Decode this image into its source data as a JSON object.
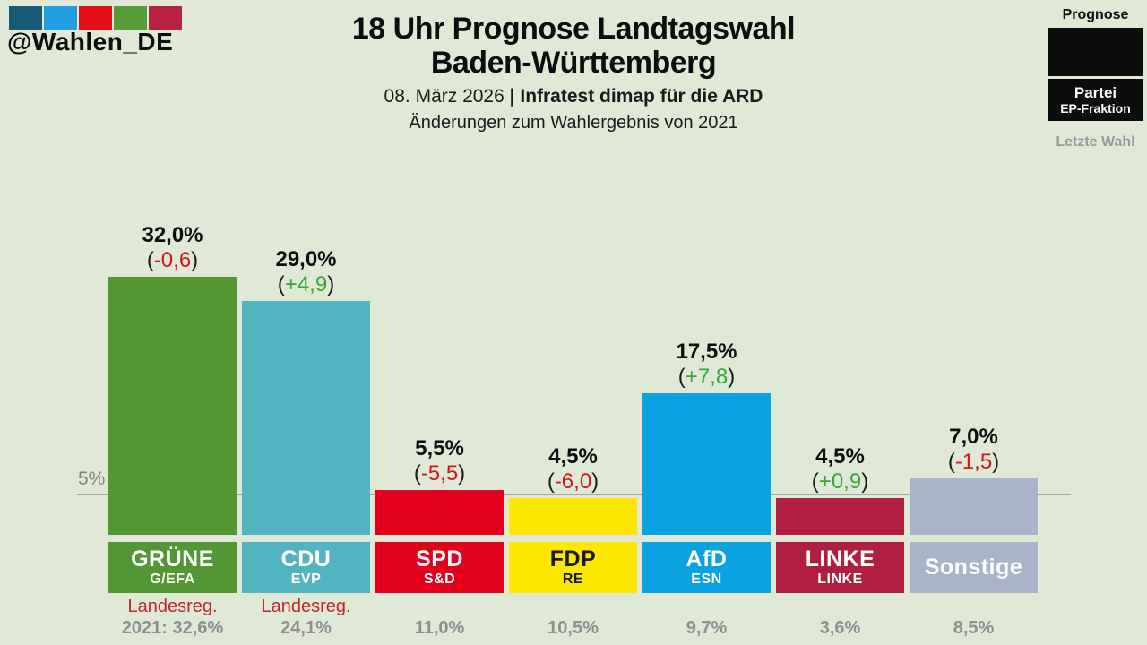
{
  "background_color": "#dfe9d6",
  "brand": {
    "handle": "@Wahlen_DE",
    "logo_square_colors": [
      "#175a74",
      "#219fe0",
      "#e30e18",
      "#579b3b",
      "#b82140"
    ]
  },
  "header": {
    "title_line1": "18 Uhr Prognose Landtagswahl",
    "title_line2": "Baden-Württemberg",
    "subtitle_date": "08. März 2026 ",
    "subtitle_separator": "| ",
    "subtitle_source": "Infratest dimap für die ARD",
    "change_note": "Änderungen zum Wahlergebnis von 2021"
  },
  "legend": {
    "prognose_label": "Prognose",
    "party_label": "Partei",
    "faction_label": "EP-Fraktion",
    "last_election_label": "Letzte Wahl"
  },
  "axis": {
    "threshold_label": "5%",
    "threshold_value": 5
  },
  "chart_data": {
    "type": "bar",
    "title": "18 Uhr Prognose Landtagswahl Baden-Württemberg",
    "subtitle": "08. März 2026 | Infratest dimap für die ARD",
    "categories": [
      "GRÜNE",
      "CDU",
      "SPD",
      "FDP",
      "AfD",
      "LINKE",
      "Sonstige"
    ],
    "values": [
      32.0,
      29.0,
      5.5,
      4.5,
      17.5,
      4.5,
      7.0
    ],
    "ylim": [
      0,
      35
    ],
    "threshold": 5,
    "grid": false,
    "change_positive_color": "#35a838",
    "change_negative_color": "#d01717",
    "bars": [
      {
        "party": "GRÜNE",
        "faction": "G/EFA",
        "value": 32.0,
        "value_label": "32,0%",
        "change": -0.6,
        "change_label": "-0,6",
        "color": "#539735",
        "label_text_color": "#ffffff",
        "gov_note": "Landesreg.",
        "last_result": "2021: 32,6%"
      },
      {
        "party": "CDU",
        "faction": "EVP",
        "value": 29.0,
        "value_label": "29,0%",
        "change": 4.9,
        "change_label": "+4,9",
        "color": "#52b4c0",
        "label_text_color": "#ffffff",
        "gov_note": "Landesreg.",
        "last_result": "24,1%"
      },
      {
        "party": "SPD",
        "faction": "S&D",
        "value": 5.5,
        "value_label": "5,5%",
        "change": -5.5,
        "change_label": "-5,5",
        "color": "#e3001c",
        "label_text_color": "#ffffff",
        "gov_note": "",
        "last_result": "11,0%"
      },
      {
        "party": "FDP",
        "faction": "RE",
        "value": 4.5,
        "value_label": "4,5%",
        "change": -6.0,
        "change_label": "-6,0",
        "color": "#ffe800",
        "label_text_color": "#1a1a1a",
        "gov_note": "",
        "last_result": "10,5%"
      },
      {
        "party": "AfD",
        "faction": "ESN",
        "value": 17.5,
        "value_label": "17,5%",
        "change": 7.8,
        "change_label": "+7,8",
        "color": "#0ba2e2",
        "label_text_color": "#ffffff",
        "gov_note": "",
        "last_result": "9,7%"
      },
      {
        "party": "LINKE",
        "faction": "LINKE",
        "value": 4.5,
        "value_label": "4,5%",
        "change": 0.9,
        "change_label": "+0,9",
        "color": "#b01f3f",
        "label_text_color": "#ffffff",
        "gov_note": "",
        "last_result": "3,6%"
      },
      {
        "party": "Sonstige",
        "faction": "",
        "value": 7.0,
        "value_label": "7,0%",
        "change": -1.5,
        "change_label": "-1,5",
        "color": "#aab4c9",
        "label_text_color": "#ffffff",
        "gov_note": "",
        "last_result": "8,5%"
      }
    ]
  }
}
